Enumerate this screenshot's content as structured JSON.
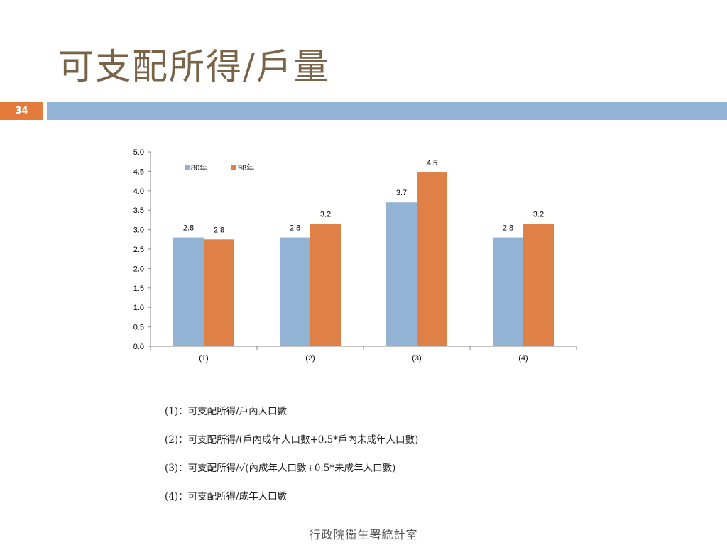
{
  "slide": {
    "title": "可支配所得/戶量",
    "page_number": "34",
    "footer": "行政院衛生署統計室"
  },
  "notes": [
    "(1)：可支配所得/戶內人口數",
    "(2)：可支配所得/(戶內成年人口數+0.5*戶內未成年人口數)",
    "(3)：可支配所得/√(內成年人口數+0.5*未成年人口數)",
    "(4)：可支配所得/成年人口數"
  ],
  "colors": {
    "accent": "#e47b3c",
    "strip": "#93b3d4",
    "title": "#7b6347"
  },
  "chart_data": {
    "type": "bar",
    "categories": [
      "(1)",
      "(2)",
      "(3)",
      "(4)"
    ],
    "series": [
      {
        "name": "80年",
        "values": [
          2.8,
          2.8,
          3.7,
          2.8
        ],
        "labels": [
          "2.8",
          "2.8",
          "3.7",
          "2.8"
        ],
        "color": "#93b3d4"
      },
      {
        "name": "98年",
        "values": [
          2.75,
          3.15,
          4.47,
          3.15
        ],
        "labels": [
          "2.8",
          "3.2",
          "4.5",
          "3.2"
        ],
        "color": "#df8146"
      }
    ],
    "ylim": [
      0,
      5
    ],
    "yticks": [
      "0.0",
      "0.5",
      "1.0",
      "1.5",
      "2.0",
      "2.5",
      "3.0",
      "3.5",
      "4.0",
      "4.5",
      "5.0"
    ],
    "legend_position": "top-left",
    "grid": false
  }
}
